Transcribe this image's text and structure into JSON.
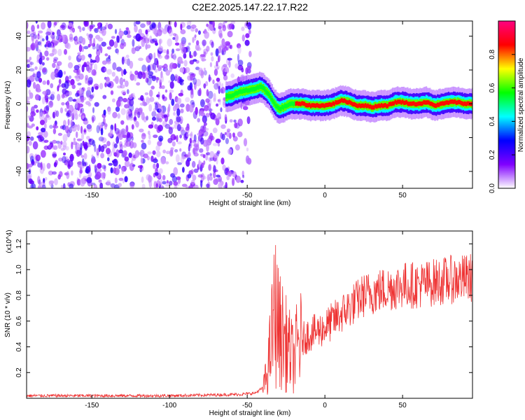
{
  "title": "C2E2.2025.147.22.17.R22",
  "chart_data": [
    {
      "type": "heatmap",
      "xlabel": "Height of straight line (km)",
      "ylabel": "Frequency (Hz)",
      "xlim": [
        -192,
        95
      ],
      "ylim": [
        -50,
        49
      ],
      "x_ticks": [
        -150,
        -100,
        -50,
        0,
        50
      ],
      "y_ticks": [
        -40,
        -20,
        0,
        20,
        40
      ],
      "colorbar": {
        "label": "Normalized spectral amplitude",
        "range": [
          0,
          1
        ],
        "ticks": [
          "0.0",
          "0.2",
          "0.4",
          "0.6",
          "0.8"
        ],
        "colormap": [
          "#ffffff",
          "#8000ff",
          "#0000ff",
          "#00ffff",
          "#00ff00",
          "#ffff00",
          "#ff0000",
          "#ff0080"
        ]
      },
      "noise_region_x": [
        -192,
        -48
      ],
      "ridge_x": [
        -64,
        -60,
        -55,
        -50,
        -45,
        -42,
        -40,
        -36,
        -33,
        -30,
        -27,
        -23,
        -20,
        -15,
        -10,
        -5,
        0,
        5,
        10,
        15,
        20,
        25,
        30,
        35,
        40,
        45,
        50,
        55,
        60,
        65,
        70,
        75,
        80,
        85,
        90,
        95
      ],
      "ridge_freq": [
        4,
        5,
        7,
        8,
        9,
        10,
        9,
        5,
        0,
        -3,
        -2,
        0,
        0,
        0,
        -1,
        -1,
        -1,
        0,
        2,
        1,
        -1,
        -1,
        -2,
        -1,
        -1,
        1,
        1,
        0,
        0,
        1,
        -1,
        0,
        1,
        1,
        0,
        0
      ]
    },
    {
      "type": "line",
      "xlabel": "Height of straight line (km)",
      "ylabel": "SNR (10 * v/v)",
      "y_multiplier": "(x10^4)",
      "xlim": [
        -192,
        95
      ],
      "ylim": [
        0,
        1.3
      ],
      "x_ticks": [
        -150,
        -100,
        -50,
        0,
        50
      ],
      "y_ticks": [
        0.2,
        0.4,
        0.6,
        0.8,
        1.0,
        1.2
      ],
      "color": "#ee3333",
      "series": [
        {
          "x": [
            -192,
            -150,
            -100,
            -55,
            -45,
            -40,
            -37,
            -35,
            -33,
            -32,
            -30,
            -28,
            -26,
            -24,
            -22,
            -20,
            -18,
            -15,
            -10,
            -5,
            0,
            5,
            10,
            15,
            20,
            25,
            30,
            40,
            50,
            60,
            70,
            80,
            90,
            95
          ],
          "values": [
            0.02,
            0.02,
            0.02,
            0.03,
            0.04,
            0.08,
            0.2,
            0.4,
            0.6,
            0.7,
            0.55,
            0.5,
            0.45,
            0.4,
            0.35,
            0.3,
            0.4,
            0.45,
            0.5,
            0.52,
            0.55,
            0.6,
            0.65,
            0.7,
            0.75,
            0.8,
            0.82,
            0.85,
            0.88,
            0.88,
            0.9,
            0.92,
            0.93,
            0.94
          ]
        }
      ]
    }
  ]
}
